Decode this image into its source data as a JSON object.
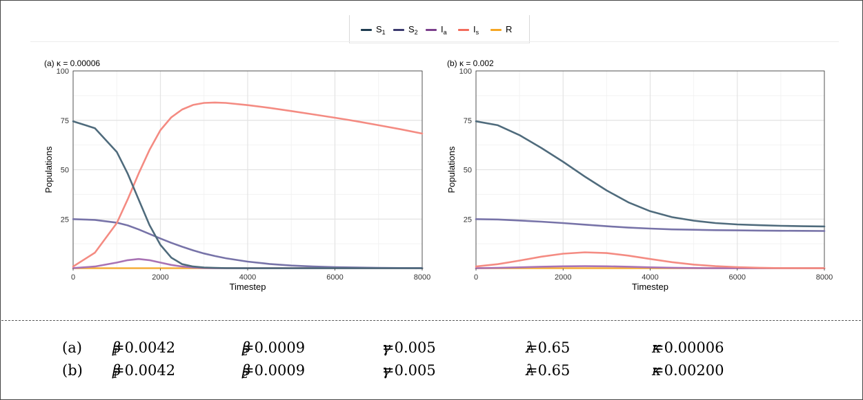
{
  "legend": {
    "items": [
      {
        "key": "S1",
        "label": "S",
        "sub": "1",
        "color": "#1d3b50"
      },
      {
        "key": "S2",
        "label": "S",
        "sub": "2",
        "color": "#3b3a6e"
      },
      {
        "key": "Ia",
        "label": "I",
        "sub": "a",
        "color": "#7b3f8c"
      },
      {
        "key": "Is",
        "label": "I",
        "sub": "s",
        "color": "#f26b5b"
      },
      {
        "key": "R",
        "label": "R",
        "sub": "",
        "color": "#f5a623"
      }
    ]
  },
  "chart_data": [
    {
      "type": "line",
      "title": "(a) κ = 0.00006",
      "xlabel": "Timestep",
      "ylabel": "Populations",
      "xlim": [
        0,
        8000
      ],
      "ylim": [
        0,
        100
      ],
      "x_ticks": [
        0,
        2000,
        4000,
        6000,
        8000
      ],
      "y_ticks": [
        25,
        50,
        75,
        100
      ],
      "grid": true,
      "legend_position": "top-center",
      "x": [
        0,
        500,
        1000,
        1250,
        1500,
        1750,
        2000,
        2250,
        2500,
        2750,
        3000,
        3250,
        3500,
        4000,
        4500,
        5000,
        5500,
        6000,
        6500,
        7000,
        7500,
        8000
      ],
      "series": [
        {
          "name": "S1",
          "values": [
            74.5,
            71,
            59,
            48,
            35,
            22,
            12,
            5.5,
            2.2,
            1.0,
            0.5,
            0.3,
            0.2,
            0.1,
            0.05,
            0,
            0,
            0,
            0,
            0,
            0,
            0
          ]
        },
        {
          "name": "S2",
          "values": [
            25,
            24.6,
            23.2,
            21.8,
            19.8,
            17.5,
            15.2,
            13,
            11,
            9.2,
            7.6,
            6.3,
            5.2,
            3.5,
            2.3,
            1.5,
            1.0,
            0.7,
            0.5,
            0.35,
            0.25,
            0.2
          ]
        },
        {
          "name": "Ia",
          "values": [
            0.2,
            1.0,
            3.0,
            4.2,
            4.8,
            4.2,
            3.0,
            1.8,
            1.0,
            0.5,
            0.25,
            0.12,
            0.06,
            0,
            0,
            0,
            0,
            0,
            0,
            0,
            0,
            0
          ]
        },
        {
          "name": "Is",
          "values": [
            1,
            8,
            23,
            35,
            48,
            60,
            70,
            76.5,
            80.5,
            82.8,
            83.8,
            84.0,
            83.8,
            82.7,
            81.3,
            79.7,
            78.0,
            76.3,
            74.5,
            72.5,
            70.5,
            68.3
          ]
        },
        {
          "name": "R",
          "values": [
            0,
            0,
            0,
            0,
            0,
            0,
            0,
            0,
            0,
            0,
            0,
            0,
            0,
            0,
            0,
            0,
            0,
            0,
            0,
            0,
            0,
            0
          ]
        }
      ]
    },
    {
      "type": "line",
      "title": "(b) κ = 0.002",
      "xlabel": "Timestep",
      "ylabel": "Populations",
      "xlim": [
        0,
        8000
      ],
      "ylim": [
        0,
        100
      ],
      "x_ticks": [
        0,
        2000,
        4000,
        6000,
        8000
      ],
      "y_ticks": [
        25,
        50,
        75,
        100
      ],
      "grid": true,
      "legend_position": "top-center",
      "x": [
        0,
        500,
        1000,
        1500,
        2000,
        2500,
        3000,
        3500,
        4000,
        4500,
        5000,
        5500,
        6000,
        6500,
        7000,
        7500,
        8000
      ],
      "series": [
        {
          "name": "S1",
          "values": [
            74.5,
            72.5,
            67.5,
            61,
            54,
            46.5,
            39.5,
            33.5,
            29,
            26,
            24.2,
            23,
            22.3,
            21.9,
            21.6,
            21.4,
            21.3
          ]
        },
        {
          "name": "S2",
          "values": [
            25,
            24.8,
            24.3,
            23.7,
            23,
            22.2,
            21.4,
            20.7,
            20.2,
            19.8,
            19.6,
            19.4,
            19.3,
            19.2,
            19.1,
            19.05,
            19
          ]
        },
        {
          "name": "Ia",
          "values": [
            0.1,
            0.3,
            0.6,
            0.9,
            1.1,
            1.2,
            1.1,
            0.9,
            0.6,
            0.4,
            0.25,
            0.15,
            0.08,
            0.05,
            0.02,
            0.01,
            0
          ]
        },
        {
          "name": "Is",
          "values": [
            1,
            2.2,
            4.0,
            6.0,
            7.5,
            8.2,
            7.8,
            6.5,
            4.8,
            3.2,
            2.0,
            1.2,
            0.7,
            0.4,
            0.2,
            0.1,
            0.05
          ]
        },
        {
          "name": "R",
          "values": [
            0,
            0,
            0,
            0,
            0,
            0,
            0,
            0,
            0,
            0,
            0,
            0,
            0,
            0,
            0,
            0,
            0
          ]
        }
      ]
    }
  ],
  "params": {
    "rows": [
      {
        "label": "(a)",
        "beta1": "=0.0042",
        "beta2": "=0.0009",
        "gamma": "=0.005",
        "lambda": "=0.65",
        "kappa": "=0.00006"
      },
      {
        "label": "(b)",
        "beta1": "=0.0042",
        "beta2": "=0.0009",
        "gamma": "=0.005",
        "lambda": "=0.65",
        "kappa": "=0.00200"
      }
    ],
    "symbols": {
      "beta": "β",
      "gamma": "γ",
      "lambda": "λ",
      "kappa": "κ",
      "sub1": "1",
      "sub2": "2"
    }
  }
}
